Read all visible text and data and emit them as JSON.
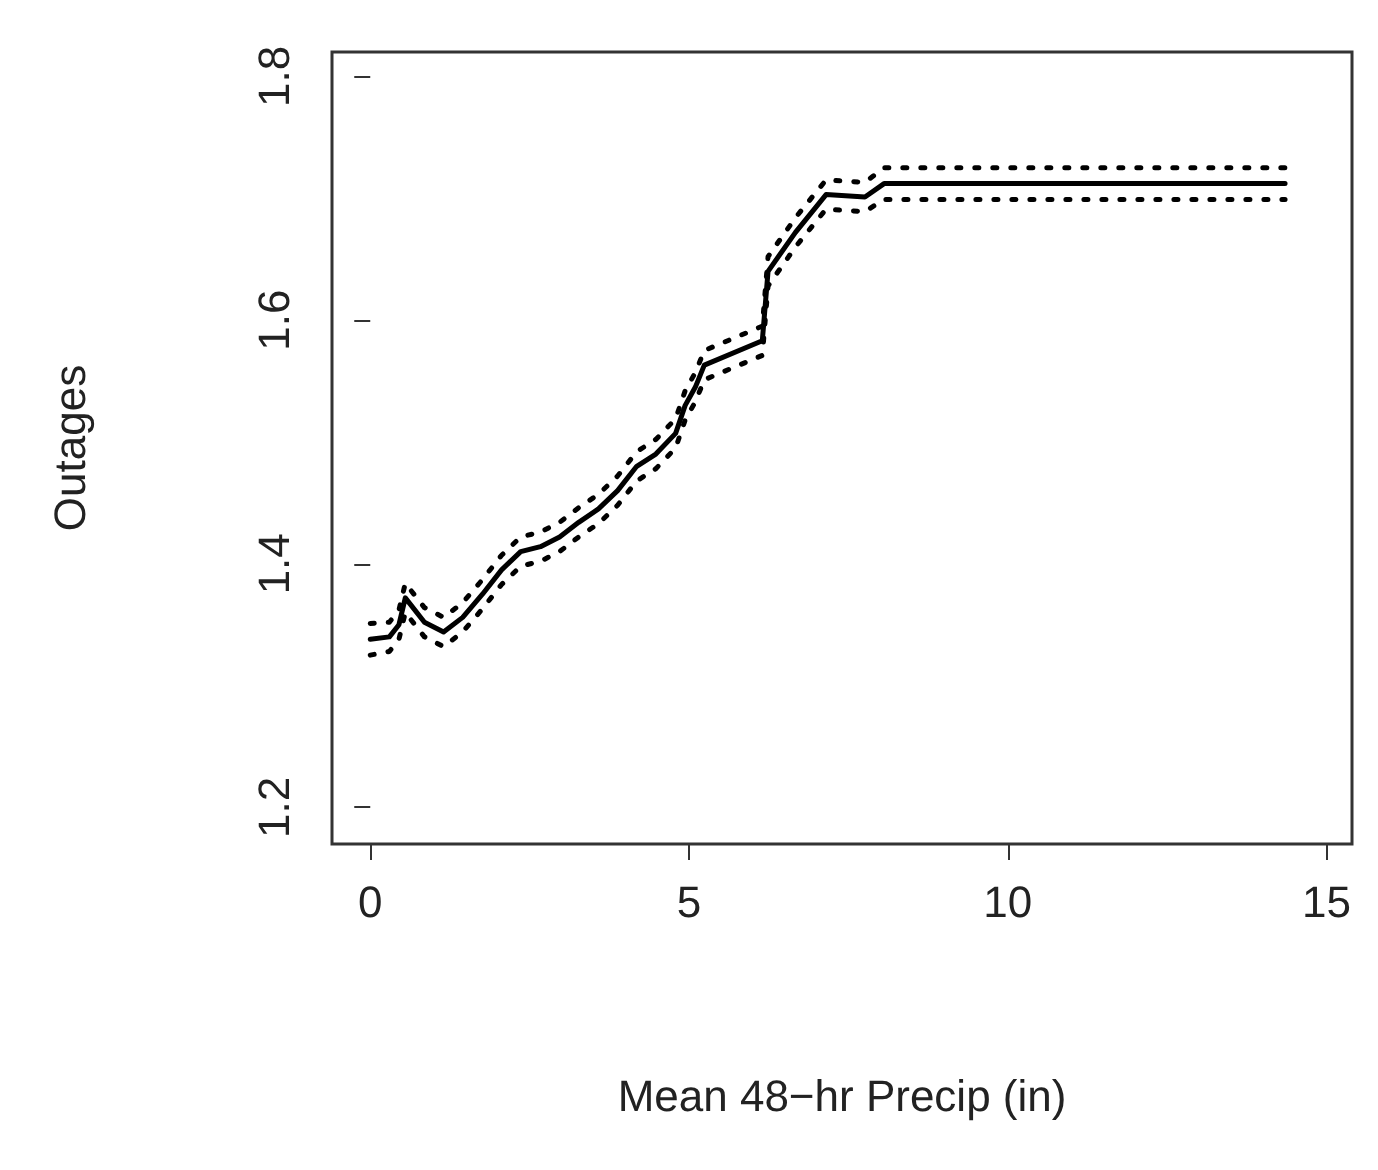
{
  "chart_data": {
    "type": "line",
    "xlabel": "Mean 48−hr Precip (in)",
    "ylabel": "Outages",
    "xlim": [
      -0.6,
      15.4
    ],
    "xticks": [
      0,
      5,
      10,
      15
    ],
    "ylim": [
      1.17,
      1.82
    ],
    "yticks": [
      1.2,
      1.4,
      1.6,
      1.8
    ],
    "grid": false,
    "marker": "none",
    "line_style": "solid",
    "x": [
      0,
      0.3,
      0.45,
      0.55,
      0.85,
      1.15,
      1.45,
      1.76,
      2.06,
      2.36,
      2.67,
      2.97,
      3.27,
      3.58,
      3.88,
      4.18,
      4.48,
      4.79,
      4.94,
      5.1,
      5.24,
      6.15,
      6.24,
      6.67,
      7.15,
      7.76,
      8.06,
      14.35
    ],
    "series": [
      {
        "color": "#000000",
        "values": [
          1.338,
          1.34,
          1.35,
          1.372,
          1.352,
          1.344,
          1.356,
          1.375,
          1.395,
          1.41,
          1.414,
          1.422,
          1.434,
          1.445,
          1.46,
          1.48,
          1.49,
          1.507,
          1.53,
          1.545,
          1.563,
          1.583,
          1.64,
          1.672,
          1.703,
          1.701,
          1.712,
          1.712
        ]
      },
      {
        "color": "#000000",
        "line_style": "dotted",
        "values": [
          1.325,
          1.328,
          1.338,
          1.36,
          1.34,
          1.332,
          1.344,
          1.363,
          1.383,
          1.398,
          1.402,
          1.41,
          1.422,
          1.433,
          1.448,
          1.468,
          1.478,
          1.495,
          1.518,
          1.533,
          1.551,
          1.571,
          1.628,
          1.66,
          1.691,
          1.689,
          1.699,
          1.699
        ]
      },
      {
        "color": "#000000",
        "line_style": "dotted",
        "values": [
          1.351,
          1.352,
          1.362,
          1.384,
          1.364,
          1.356,
          1.368,
          1.387,
          1.407,
          1.422,
          1.426,
          1.434,
          1.446,
          1.457,
          1.472,
          1.492,
          1.502,
          1.519,
          1.542,
          1.557,
          1.575,
          1.595,
          1.652,
          1.684,
          1.715,
          1.713,
          1.725,
          1.725
        ]
      }
    ]
  }
}
